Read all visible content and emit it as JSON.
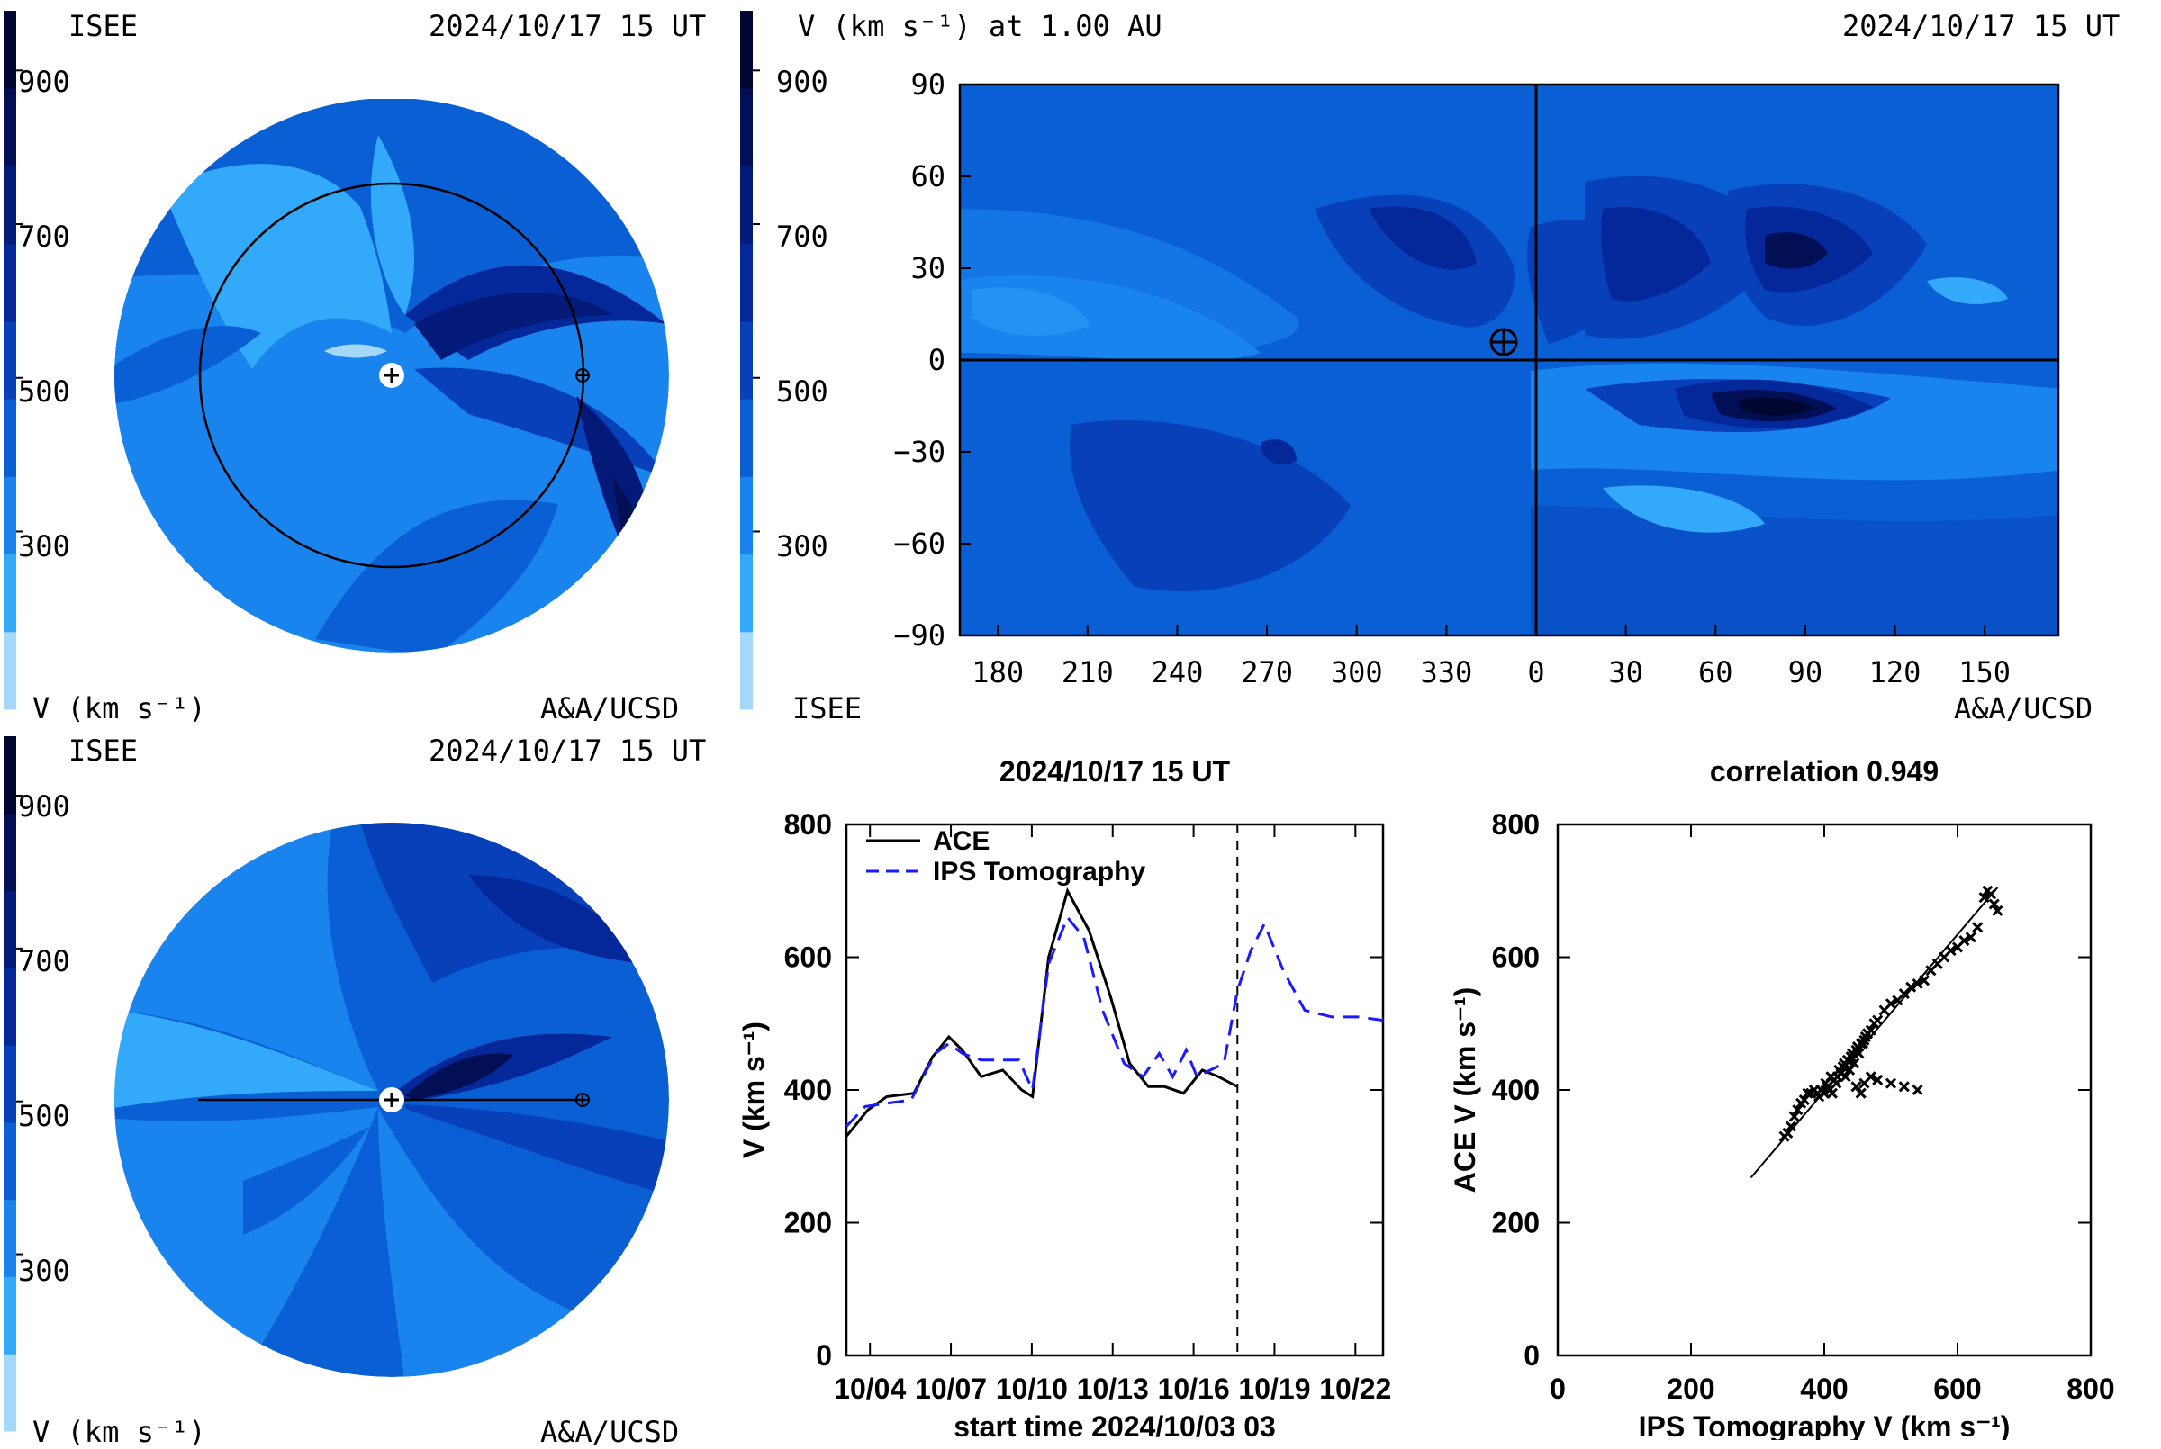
{
  "colors": {
    "scale": [
      "#a5d8f8",
      "#33a9fa",
      "#1a84ee",
      "#0a5fd4",
      "#0740b8",
      "#04289a",
      "#031a78",
      "#020f55",
      "#010730"
    ],
    "bg_fill": "#1f6fe0",
    "ace_line": "#000000",
    "ips_line": "#1a1aff"
  },
  "panel_tl": {
    "left_label": "ISEE",
    "timestamp": "2024/10/17 15 UT",
    "colorbar_ticks": [
      "900",
      "700",
      "500",
      "300"
    ],
    "unit_label": "V (km s⁻¹)",
    "credit": "A&A/UCSD"
  },
  "panel_bl": {
    "left_label": "ISEE",
    "timestamp": "2024/10/17 15 UT",
    "colorbar_ticks": [
      "900",
      "700",
      "500",
      "300"
    ],
    "unit_label": "V (km s⁻¹)",
    "credit": "A&A/UCSD"
  },
  "panel_map": {
    "title": "V (km s⁻¹) at 1.00 AU",
    "timestamp": "2024/10/17 15 UT",
    "colorbar_ticks": [
      "900",
      "700",
      "500",
      "300"
    ],
    "left_label": "ISEE",
    "credit": "A&A/UCSD",
    "y_ticks": [
      "90",
      "60",
      "30",
      "0",
      "−30",
      "−60",
      "−90"
    ],
    "x_ticks": [
      "180",
      "210",
      "240",
      "270",
      "300",
      "330",
      "0",
      "30",
      "60",
      "90",
      "120",
      "150"
    ]
  },
  "chart_data": [
    {
      "type": "line",
      "title": "2024/10/17 15 UT",
      "xlabel": "start time 2024/10/03 03",
      "ylabel": "V (km s⁻¹)",
      "ylim": [
        0,
        800
      ],
      "xlim": [
        0,
        19.9
      ],
      "x_tick_labels": [
        "10/04",
        "10/07",
        "10/10",
        "10/13",
        "10/16",
        "10/19",
        "10/22"
      ],
      "x_tick_positions": [
        0.875,
        3.875,
        6.875,
        9.875,
        12.875,
        15.875,
        18.875
      ],
      "y_ticks": [
        "0",
        "200",
        "400",
        "600",
        "800"
      ],
      "current_time_marker": 14.5,
      "legend": "top-left",
      "series": [
        {
          "name": "ACE",
          "x": [
            0,
            0.8,
            1.5,
            2.5,
            3.2,
            3.8,
            4.3,
            5.0,
            5.8,
            6.5,
            6.9,
            7.5,
            8.2,
            9.0,
            9.8,
            10.5,
            11.2,
            11.8,
            12.5,
            13.2,
            13.8,
            14.5
          ],
          "values": [
            330,
            370,
            390,
            395,
            450,
            480,
            460,
            420,
            430,
            400,
            390,
            600,
            700,
            640,
            540,
            440,
            405,
            405,
            395,
            430,
            420,
            405
          ]
        },
        {
          "name": "IPS Tomography",
          "x": [
            0,
            0.7,
            1.5,
            2.4,
            3.3,
            3.8,
            4.3,
            5.0,
            5.8,
            6.4,
            6.9,
            7.5,
            8.2,
            8.8,
            9.5,
            10.3,
            11.0,
            11.6,
            12.1,
            12.6,
            13.0,
            13.5,
            14.0,
            14.5,
            15.0,
            15.5,
            16.2,
            17.0,
            18.0,
            19.0,
            19.9
          ],
          "values": [
            345,
            375,
            380,
            385,
            455,
            470,
            455,
            445,
            445,
            445,
            400,
            590,
            660,
            630,
            520,
            440,
            420,
            455,
            420,
            460,
            420,
            430,
            440,
            550,
            610,
            650,
            580,
            520,
            510,
            510,
            505
          ]
        }
      ]
    },
    {
      "type": "scatter",
      "title": "correlation 0.949",
      "xlabel": "IPS Tomography V (km s⁻¹)",
      "ylabel": "ACE V (km s⁻¹)",
      "xlim": [
        0,
        800
      ],
      "ylim": [
        0,
        800
      ],
      "x_ticks": [
        "0",
        "200",
        "400",
        "600",
        "800"
      ],
      "y_ticks": [
        "0",
        "200",
        "400",
        "600",
        "800"
      ],
      "fit_line": {
        "x": [
          290,
          660
        ],
        "y": [
          268,
          705
        ]
      },
      "series": [
        {
          "x": [
            340,
            345,
            350,
            355,
            360,
            365,
            370,
            375,
            380,
            385,
            390,
            392,
            395,
            400,
            402,
            405,
            408,
            410,
            412,
            415,
            418,
            420,
            422,
            425,
            428,
            430,
            432,
            435,
            438,
            440,
            442,
            445,
            448,
            450,
            452,
            455,
            458,
            460,
            462,
            465,
            470,
            475,
            480,
            490,
            500,
            510,
            520,
            530,
            540,
            550,
            560,
            570,
            580,
            590,
            600,
            610,
            620,
            630,
            640,
            645,
            650,
            655,
            660,
            448,
            460,
            480,
            500,
            520,
            540,
            455,
            470
          ],
          "y": [
            330,
            335,
            345,
            360,
            370,
            380,
            385,
            395,
            395,
            400,
            395,
            390,
            400,
            395,
            410,
            405,
            400,
            420,
            395,
            415,
            410,
            420,
            430,
            425,
            435,
            440,
            420,
            445,
            430,
            450,
            455,
            440,
            460,
            465,
            455,
            470,
            470,
            475,
            480,
            485,
            490,
            500,
            505,
            520,
            530,
            535,
            545,
            555,
            560,
            565,
            580,
            590,
            600,
            610,
            615,
            625,
            630,
            645,
            690,
            700,
            695,
            680,
            670,
            405,
            410,
            415,
            410,
            405,
            400,
            395,
            420
          ]
        }
      ]
    }
  ]
}
